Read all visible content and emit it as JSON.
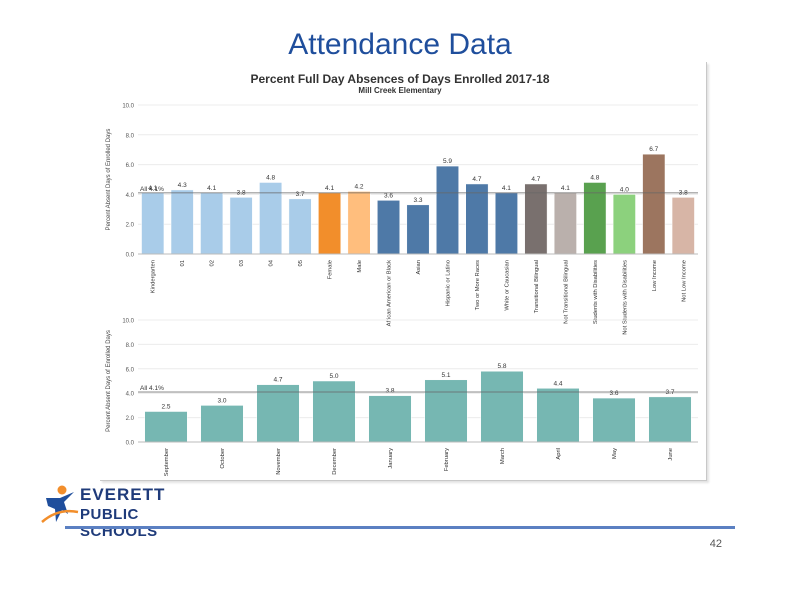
{
  "slide": {
    "title": "Attendance Data",
    "page_number": "42",
    "logo_line1": "EVERETT",
    "logo_line2": "PUBLIC SCHOOLS"
  },
  "colors": {
    "title": "#1f4e9c",
    "footer_rule": "#5b80c2",
    "reference_line": "#666666"
  },
  "chart_data": [
    {
      "type": "bar",
      "title": "Percent Full Day Absences of Days Enrolled 2017-18",
      "subtitle": "Mill Creek Elementary",
      "ylabel": "Percent Absent Days of Enrolled Days",
      "ylim": [
        0,
        10
      ],
      "yticks": [
        "0.0",
        "2.0",
        "4.0",
        "6.0",
        "8.0",
        "10.0"
      ],
      "reference": {
        "value": 4.1,
        "label": "All 4.1%"
      },
      "categories": [
        "Kindergarten",
        "01",
        "02",
        "03",
        "04",
        "05",
        "Female",
        "Male",
        "African American or Black",
        "Asian",
        "Hispanic or Latino",
        "Two or More Races",
        "White or Caucasian",
        "Transitional Bilingual",
        "Not Transitional Bilingual",
        "Students with Disabilities",
        "Not Students with Disabilities",
        "Low Income",
        "Not Low Income"
      ],
      "values": [
        4.1,
        4.3,
        4.1,
        3.8,
        4.8,
        3.7,
        4.1,
        4.2,
        3.6,
        3.3,
        5.9,
        4.7,
        4.1,
        4.7,
        4.1,
        4.8,
        4.0,
        6.7,
        3.8
      ],
      "labels": [
        "4.1",
        "4.3",
        "4.1",
        "3.8",
        "4.8",
        "3.7",
        "4.1",
        "4.2",
        "3.6",
        "3.3",
        "5.9",
        "4.7",
        "4.1",
        "4.7",
        "4.1",
        "4.8",
        "4.0",
        "6.7",
        "3.8"
      ],
      "colors": [
        "#a9cce9",
        "#a9cce9",
        "#a9cce9",
        "#a9cce9",
        "#a9cce9",
        "#a9cce9",
        "#f28e2b",
        "#ffbe7d",
        "#4e79a7",
        "#4e79a7",
        "#4e79a7",
        "#4e79a7",
        "#4e79a7",
        "#79706e",
        "#bab0ac",
        "#59a14f",
        "#8cd17d",
        "#9c755f",
        "#d7b5a6"
      ],
      "grid": true,
      "legend": "none"
    },
    {
      "type": "bar",
      "ylabel": "Percent Absent Days of Enrolled Days",
      "ylim": [
        0,
        10
      ],
      "yticks": [
        "0.0",
        "2.0",
        "4.0",
        "6.0",
        "8.0",
        "10.0"
      ],
      "reference": {
        "value": 4.1,
        "label": "All 4.1%"
      },
      "categories": [
        "September",
        "October",
        "November",
        "December",
        "January",
        "February",
        "March",
        "April",
        "May",
        "June"
      ],
      "values": [
        2.5,
        3.0,
        4.7,
        5.0,
        3.8,
        5.1,
        5.8,
        4.4,
        3.6,
        3.7
      ],
      "labels": [
        "2.5",
        "3.0",
        "4.7",
        "5.0",
        "3.8",
        "5.1",
        "5.8",
        "4.4",
        "3.6",
        "3.7"
      ],
      "colors": [
        "#76b7b2"
      ],
      "grid": true,
      "legend": "none"
    }
  ]
}
